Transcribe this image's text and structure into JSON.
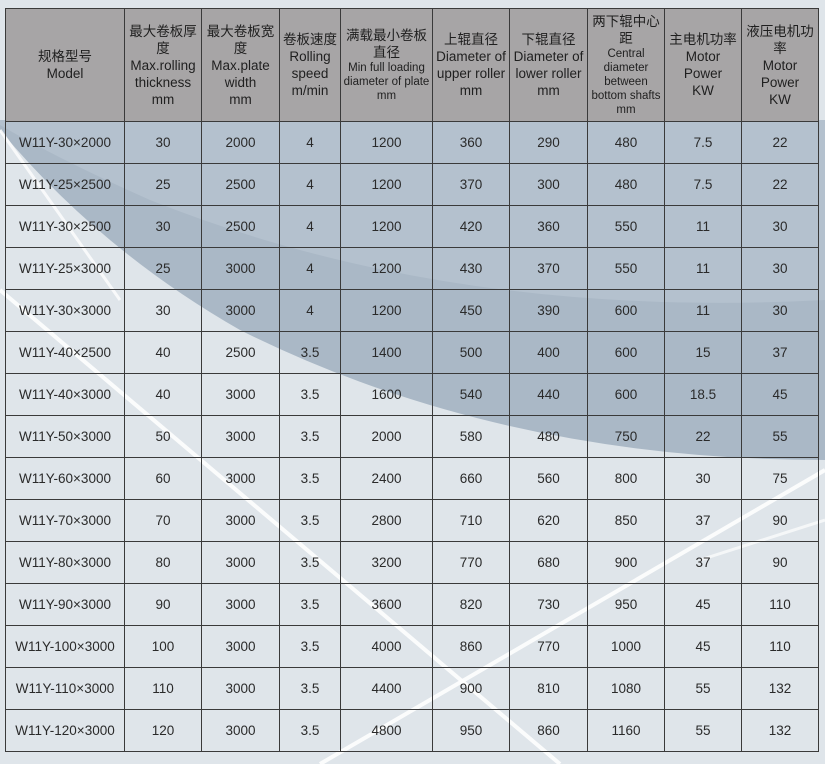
{
  "headers": [
    {
      "zh": "规格型号",
      "en": "Model",
      "unit": ""
    },
    {
      "zh": "最大卷板厚度",
      "en": "Max.rolling thickness",
      "unit": "mm"
    },
    {
      "zh": "最大卷板宽度",
      "en": "Max.plate width",
      "unit": "mm"
    },
    {
      "zh": "卷板速度",
      "en": "Rolling speed",
      "unit": "m/min"
    },
    {
      "zh": "满载最小卷板直径",
      "en": "Min full loading diameter of plate",
      "unit": "mm"
    },
    {
      "zh": "上辊直径",
      "en": "Diameter of upper roller",
      "unit": "mm"
    },
    {
      "zh": "下辊直径",
      "en": "Diameter of lower roller",
      "unit": "mm"
    },
    {
      "zh": "两下辊中心距",
      "en": "Central diameter between bottom shafts",
      "unit": "mm"
    },
    {
      "zh": "主电机功率",
      "en": "Motor Power",
      "unit": "KW"
    },
    {
      "zh": "液压电机功率",
      "en": "Motor Power",
      "unit": "KW"
    }
  ],
  "rows": [
    [
      "W11Y-30×2000",
      "30",
      "2000",
      "4",
      "1200",
      "360",
      "290",
      "480",
      "7.5",
      "22"
    ],
    [
      "W11Y-25×2500",
      "25",
      "2500",
      "4",
      "1200",
      "370",
      "300",
      "480",
      "7.5",
      "22"
    ],
    [
      "W11Y-30×2500",
      "30",
      "2500",
      "4",
      "1200",
      "420",
      "360",
      "550",
      "11",
      "30"
    ],
    [
      "W11Y-25×3000",
      "25",
      "3000",
      "4",
      "1200",
      "430",
      "370",
      "550",
      "11",
      "30"
    ],
    [
      "W11Y-30×3000",
      "30",
      "3000",
      "4",
      "1200",
      "450",
      "390",
      "600",
      "11",
      "30"
    ],
    [
      "W11Y-40×2500",
      "40",
      "2500",
      "3.5",
      "1400",
      "500",
      "400",
      "600",
      "15",
      "37"
    ],
    [
      "W11Y-40×3000",
      "40",
      "3000",
      "3.5",
      "1600",
      "540",
      "440",
      "600",
      "18.5",
      "45"
    ],
    [
      "W11Y-50×3000",
      "50",
      "3000",
      "3.5",
      "2000",
      "580",
      "480",
      "750",
      "22",
      "55"
    ],
    [
      "W11Y-60×3000",
      "60",
      "3000",
      "3.5",
      "2400",
      "660",
      "560",
      "800",
      "30",
      "75"
    ],
    [
      "W11Y-70×3000",
      "70",
      "3000",
      "3.5",
      "2800",
      "710",
      "620",
      "850",
      "37",
      "90"
    ],
    [
      "W11Y-80×3000",
      "80",
      "3000",
      "3.5",
      "3200",
      "770",
      "680",
      "900",
      "37",
      "90"
    ],
    [
      "W11Y-90×3000",
      "90",
      "3000",
      "3.5",
      "3600",
      "820",
      "730",
      "950",
      "45",
      "110"
    ],
    [
      "W11Y-100×3000",
      "100",
      "3000",
      "3.5",
      "4000",
      "860",
      "770",
      "1000",
      "45",
      "110"
    ],
    [
      "W11Y-110×3000",
      "110",
      "3000",
      "3.5",
      "4400",
      "900",
      "810",
      "1080",
      "55",
      "132"
    ],
    [
      "W11Y-120×3000",
      "120",
      "3000",
      "3.5",
      "4800",
      "950",
      "860",
      "1160",
      "55",
      "132"
    ]
  ]
}
